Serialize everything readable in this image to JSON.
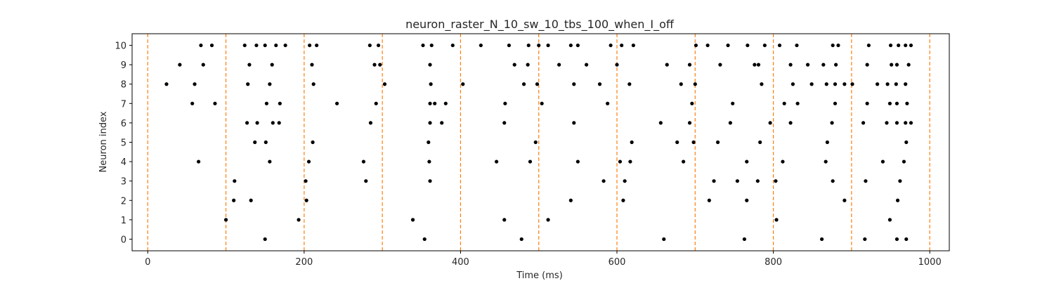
{
  "chart_data": {
    "type": "scatter",
    "title": "neuron_raster_N_10_sw_10_tbs_100_when_I_off",
    "xlabel": "Time (ms)",
    "ylabel": "Neuron index",
    "xlim": [
      -20,
      1025
    ],
    "ylim": [
      -0.6,
      10.6
    ],
    "x_ticks": [
      0,
      200,
      400,
      600,
      800,
      1000
    ],
    "y_ticks": [
      0,
      1,
      2,
      3,
      4,
      5,
      6,
      7,
      8,
      9,
      10
    ],
    "vlines": [
      0,
      100,
      200,
      300,
      400,
      500,
      600,
      700,
      800,
      900,
      1000
    ],
    "vline_color": "#ff7f0e",
    "point_color": "#000000",
    "grid": false,
    "legend": false,
    "neurons": [
      {
        "index": 0,
        "spike_times": [
          150,
          354,
          478,
          660,
          763,
          862,
          917,
          958,
          970
        ]
      },
      {
        "index": 1,
        "spike_times": [
          100,
          193,
          339,
          456,
          512,
          804,
          949
        ]
      },
      {
        "index": 2,
        "spike_times": [
          110,
          132,
          203,
          541,
          608,
          718,
          766,
          891,
          959
        ]
      },
      {
        "index": 3,
        "spike_times": [
          111,
          202,
          279,
          361,
          583,
          610,
          724,
          754,
          780,
          803,
          876,
          918,
          962
        ]
      },
      {
        "index": 4,
        "spike_times": [
          65,
          156,
          206,
          276,
          360,
          446,
          489,
          550,
          604,
          617,
          685,
          766,
          812,
          867,
          940,
          967
        ]
      },
      {
        "index": 5,
        "spike_times": [
          137,
          151,
          211,
          359,
          496,
          619,
          677,
          698,
          729,
          783,
          869,
          970
        ]
      },
      {
        "index": 6,
        "spike_times": [
          127,
          140,
          160,
          168,
          285,
          361,
          376,
          456,
          545,
          656,
          693,
          745,
          796,
          822,
          875,
          915,
          945,
          958,
          969,
          976
        ]
      },
      {
        "index": 7,
        "spike_times": [
          57,
          86,
          152,
          169,
          242,
          292,
          361,
          367,
          381,
          457,
          504,
          588,
          696,
          748,
          814,
          831,
          879,
          920,
          949,
          958,
          971
        ]
      },
      {
        "index": 8,
        "spike_times": [
          24,
          60,
          128,
          156,
          212,
          303,
          362,
          403,
          481,
          498,
          545,
          578,
          616,
          682,
          700,
          785,
          825,
          849,
          868,
          879,
          891,
          901,
          933,
          946,
          957,
          969
        ]
      },
      {
        "index": 9,
        "spike_times": [
          41,
          71,
          130,
          159,
          210,
          290,
          297,
          361,
          469,
          486,
          526,
          561,
          600,
          664,
          693,
          732,
          776,
          781,
          822,
          844,
          864,
          880,
          920,
          951,
          958,
          973
        ]
      },
      {
        "index": 10,
        "spike_times": [
          68,
          82,
          124,
          139,
          150,
          164,
          176,
          207,
          216,
          284,
          295,
          352,
          363,
          390,
          426,
          462,
          487,
          500,
          512,
          541,
          550,
          592,
          606,
          621,
          701,
          716,
          742,
          767,
          789,
          808,
          830,
          876,
          883,
          922,
          950,
          960,
          969,
          976
        ]
      }
    ]
  }
}
